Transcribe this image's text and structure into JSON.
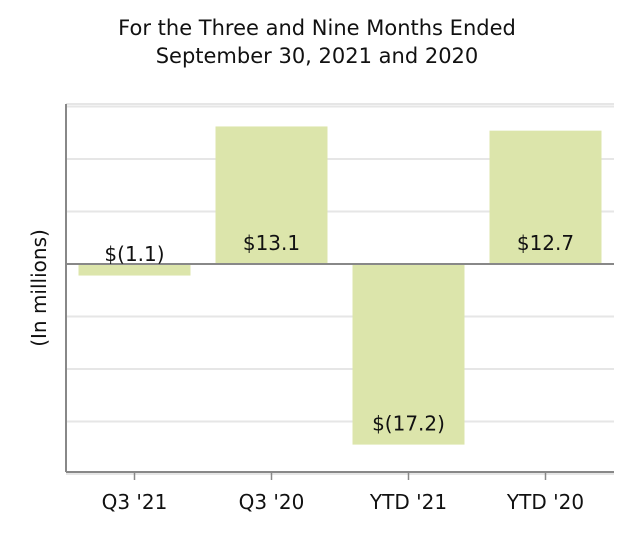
{
  "chart_data": {
    "type": "bar",
    "title": "For the Three and Nine Months Ended",
    "subtitle": "September 30, 2021 and 2020",
    "ylabel": "(In millions)",
    "xlabel": "",
    "categories": [
      "Q3 '21",
      "Q3 '20",
      "YTD '21",
      "YTD '20"
    ],
    "values": [
      -1.1,
      13.1,
      -17.2,
      12.7
    ],
    "data_labels": [
      "$(1.1)",
      "$13.1",
      "$(17.2)",
      "$12.7"
    ],
    "ylim": [
      -20,
      15
    ],
    "grid": true,
    "legend": "none",
    "bar_color": "#dce5ab",
    "grid_color": "#e6e6e6",
    "axis_color": "#888888"
  }
}
